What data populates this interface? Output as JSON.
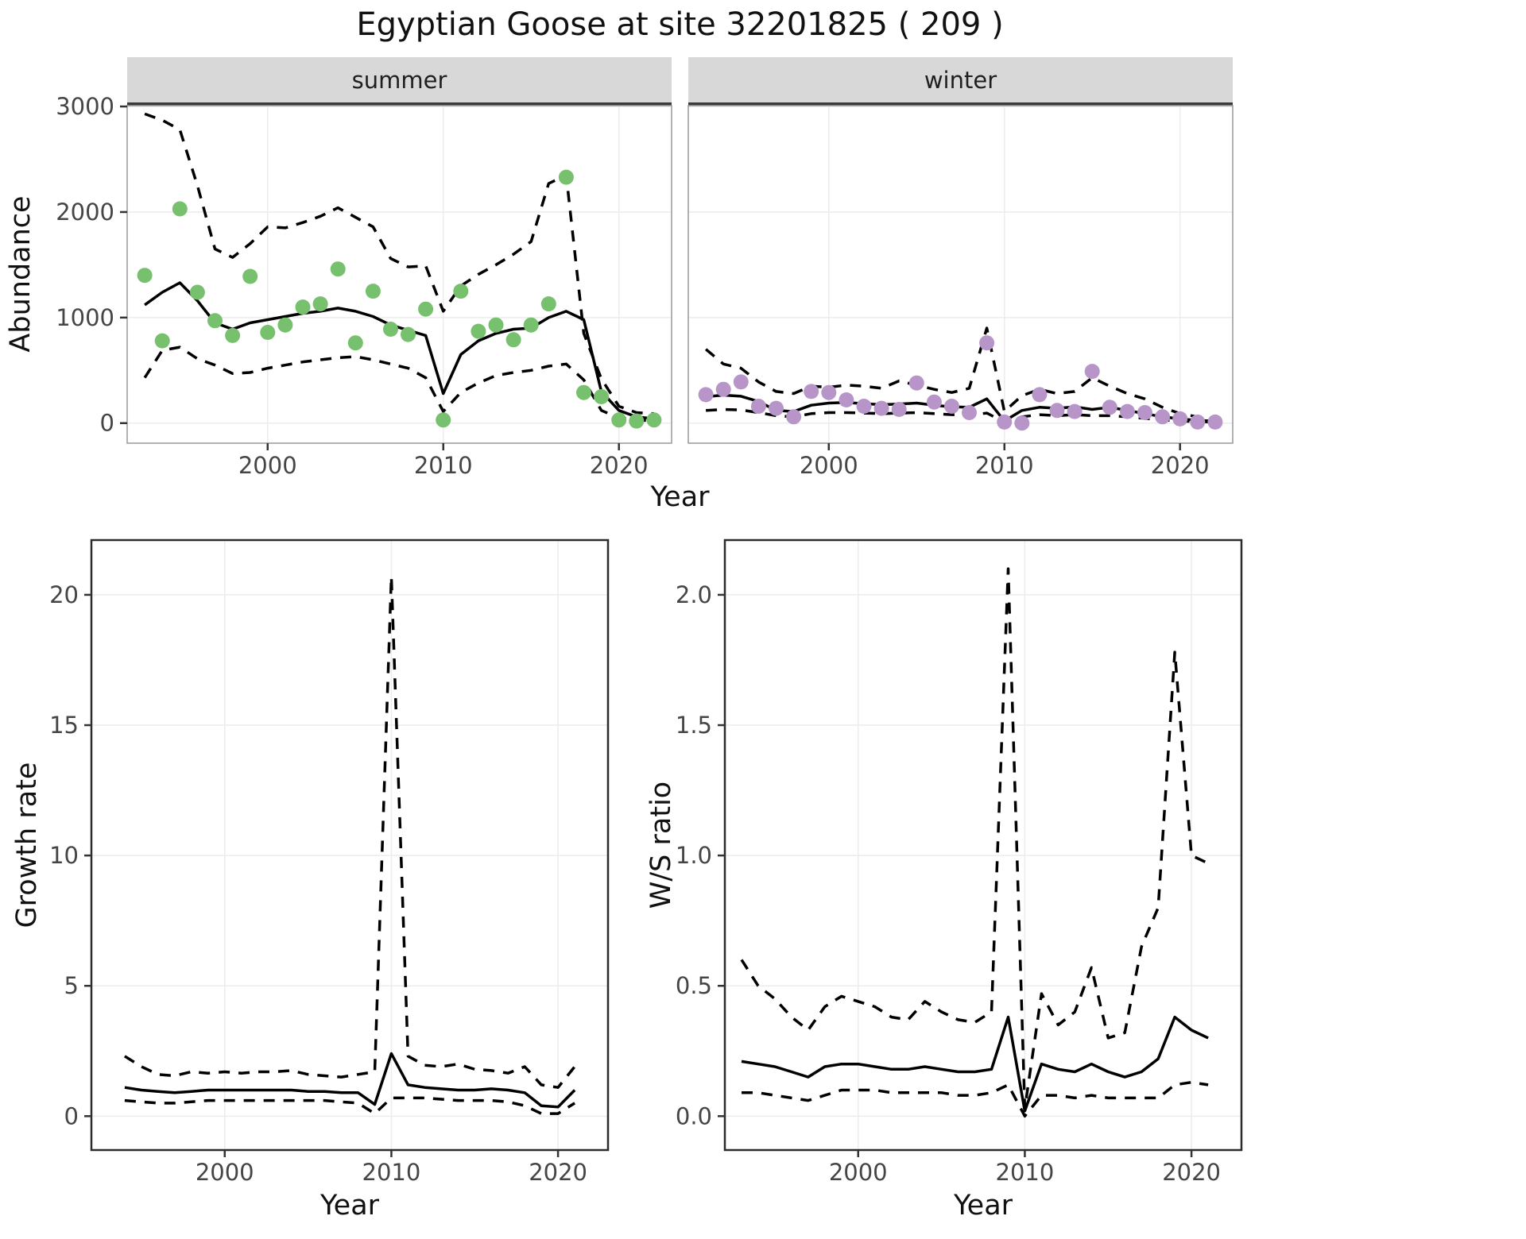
{
  "title": "Egyptian Goose at site 32201825 ( 209 )",
  "chart_data": [
    {
      "id": "abundance-summer",
      "type": "scatter",
      "facet": "summer",
      "xlabel": "Year",
      "ylabel": "Abundance",
      "xlim": [
        1992,
        2023
      ],
      "ylim": [
        -190,
        3008
      ],
      "xticks": [
        2000,
        2010,
        2020
      ],
      "xtick_labels": [
        "2000",
        "2010",
        "2020"
      ],
      "yticks": [
        0,
        1000,
        2000,
        3000
      ],
      "ytick_labels": [
        "0",
        "1000",
        "2000",
        "3000"
      ],
      "x": [
        1993,
        1994,
        1995,
        1996,
        1997,
        1998,
        1999,
        2000,
        2001,
        2002,
        2003,
        2004,
        2005,
        2006,
        2007,
        2008,
        2009,
        2010,
        2011,
        2012,
        2013,
        2014,
        2015,
        2016,
        2017,
        2018,
        2019,
        2020,
        2021,
        2022
      ],
      "series": [
        {
          "name": "observed counts",
          "style": "points",
          "color": "#77c06e",
          "values": [
            1400,
            780,
            2030,
            1240,
            970,
            830,
            1390,
            860,
            930,
            1100,
            1130,
            1460,
            760,
            1250,
            890,
            840,
            1080,
            30,
            1250,
            870,
            930,
            790,
            930,
            1130,
            2330,
            290,
            250,
            30,
            20,
            30
          ]
        },
        {
          "name": "model fit",
          "style": "solid",
          "color": "#000000",
          "values": [
            1120,
            1240,
            1330,
            1160,
            950,
            890,
            950,
            980,
            1010,
            1040,
            1060,
            1090,
            1060,
            1010,
            930,
            880,
            830,
            280,
            650,
            780,
            850,
            890,
            900,
            1000,
            1060,
            980,
            300,
            120,
            60,
            40
          ]
        },
        {
          "name": "upper CI",
          "style": "dashed",
          "color": "#000000",
          "values": [
            2930,
            2870,
            2780,
            2250,
            1650,
            1570,
            1700,
            1860,
            1850,
            1900,
            1960,
            2040,
            1950,
            1860,
            1560,
            1480,
            1490,
            1060,
            1300,
            1410,
            1500,
            1600,
            1720,
            2270,
            2350,
            850,
            420,
            160,
            100,
            90
          ]
        },
        {
          "name": "lower CI",
          "style": "dashed",
          "color": "#000000",
          "values": [
            430,
            690,
            720,
            610,
            550,
            470,
            480,
            520,
            550,
            580,
            600,
            620,
            630,
            600,
            560,
            520,
            430,
            110,
            290,
            380,
            450,
            480,
            500,
            540,
            560,
            410,
            120,
            50,
            30,
            20
          ]
        }
      ]
    },
    {
      "id": "abundance-winter",
      "type": "scatter",
      "facet": "winter",
      "xlabel": "Year",
      "ylabel": "Abundance",
      "xlim": [
        1992,
        2023
      ],
      "ylim": [
        -190,
        3008
      ],
      "xticks": [
        2000,
        2010,
        2020
      ],
      "xtick_labels": [
        "2000",
        "2010",
        "2020"
      ],
      "yticks": [
        0,
        1000,
        2000,
        3000
      ],
      "ytick_labels": [
        "0",
        "1000",
        "2000",
        "3000"
      ],
      "x": [
        1993,
        1994,
        1995,
        1996,
        1997,
        1998,
        1999,
        2000,
        2001,
        2002,
        2003,
        2004,
        2005,
        2006,
        2007,
        2008,
        2009,
        2010,
        2011,
        2012,
        2013,
        2014,
        2015,
        2016,
        2017,
        2018,
        2019,
        2020,
        2021,
        2022
      ],
      "series": [
        {
          "name": "observed counts",
          "style": "points",
          "color": "#b795c8",
          "values": [
            270,
            320,
            390,
            160,
            140,
            60,
            300,
            290,
            220,
            160,
            140,
            130,
            380,
            200,
            160,
            100,
            760,
            10,
            0,
            270,
            120,
            110,
            490,
            150,
            110,
            100,
            60,
            40,
            10,
            10
          ]
        },
        {
          "name": "model fit",
          "style": "solid",
          "color": "#000000",
          "values": [
            250,
            265,
            255,
            205,
            120,
            110,
            170,
            190,
            195,
            185,
            175,
            180,
            190,
            170,
            155,
            150,
            230,
            20,
            120,
            150,
            140,
            155,
            130,
            150,
            120,
            90,
            60,
            40,
            25,
            20
          ]
        },
        {
          "name": "upper CI",
          "style": "dashed",
          "color": "#000000",
          "values": [
            700,
            560,
            520,
            390,
            300,
            280,
            350,
            340,
            360,
            350,
            330,
            400,
            360,
            320,
            290,
            330,
            900,
            110,
            260,
            320,
            280,
            300,
            430,
            350,
            280,
            230,
            150,
            90,
            60,
            50
          ]
        },
        {
          "name": "lower CI",
          "style": "dashed",
          "color": "#000000",
          "values": [
            120,
            130,
            125,
            100,
            70,
            60,
            90,
            100,
            100,
            95,
            90,
            95,
            100,
            90,
            80,
            75,
            95,
            10,
            60,
            80,
            70,
            80,
            70,
            70,
            60,
            45,
            30,
            20,
            15,
            10
          ]
        }
      ]
    },
    {
      "id": "growth-rate",
      "type": "line",
      "xlabel": "Year",
      "ylabel": "Growth rate",
      "xlim": [
        1992,
        2023
      ],
      "ylim": [
        -1.3,
        22.1
      ],
      "xticks": [
        2000,
        2010,
        2020
      ],
      "xtick_labels": [
        "2000",
        "2010",
        "2020"
      ],
      "yticks": [
        0,
        5,
        10,
        15,
        20
      ],
      "ytick_labels": [
        "0",
        "5",
        "10",
        "15",
        "20"
      ],
      "x": [
        1994,
        1995,
        1996,
        1997,
        1998,
        1999,
        2000,
        2001,
        2002,
        2003,
        2004,
        2005,
        2006,
        2007,
        2008,
        2009,
        2010,
        2011,
        2012,
        2013,
        2014,
        2015,
        2016,
        2017,
        2018,
        2019,
        2020,
        2021
      ],
      "series": [
        {
          "name": "growth rate",
          "style": "solid",
          "color": "#000000",
          "values": [
            1.1,
            1.0,
            0.95,
            0.9,
            0.95,
            1.0,
            1.0,
            1.0,
            1.0,
            1.0,
            1.0,
            0.95,
            0.95,
            0.9,
            0.9,
            0.45,
            2.4,
            1.2,
            1.1,
            1.05,
            1.0,
            1.0,
            1.05,
            1.0,
            0.9,
            0.4,
            0.35,
            1.0
          ]
        },
        {
          "name": "upper CI",
          "style": "dashed",
          "color": "#000000",
          "values": [
            2.3,
            1.9,
            1.6,
            1.55,
            1.7,
            1.65,
            1.7,
            1.65,
            1.7,
            1.7,
            1.75,
            1.6,
            1.55,
            1.5,
            1.6,
            1.7,
            20.7,
            2.3,
            1.95,
            1.9,
            2.0,
            1.8,
            1.75,
            1.65,
            1.9,
            1.2,
            1.1,
            1.9
          ]
        },
        {
          "name": "lower CI",
          "style": "dashed",
          "color": "#000000",
          "values": [
            0.6,
            0.55,
            0.5,
            0.5,
            0.55,
            0.6,
            0.6,
            0.6,
            0.6,
            0.6,
            0.6,
            0.6,
            0.6,
            0.55,
            0.5,
            0.1,
            0.7,
            0.7,
            0.7,
            0.65,
            0.6,
            0.6,
            0.6,
            0.55,
            0.4,
            0.1,
            0.1,
            0.5
          ]
        }
      ]
    },
    {
      "id": "ws-ratio",
      "type": "line",
      "xlabel": "Year",
      "ylabel": "W/S ratio",
      "xlim": [
        1992,
        2023
      ],
      "ylim": [
        -0.13,
        2.21
      ],
      "xticks": [
        2000,
        2010,
        2020
      ],
      "xtick_labels": [
        "2000",
        "2010",
        "2020"
      ],
      "yticks": [
        0,
        0.5,
        1,
        1.5,
        2
      ],
      "ytick_labels": [
        "0.0",
        "0.5",
        "1.0",
        "1.5",
        "2.0"
      ],
      "x": [
        1993,
        1994,
        1995,
        1996,
        1997,
        1998,
        1999,
        2000,
        2001,
        2002,
        2003,
        2004,
        2005,
        2006,
        2007,
        2008,
        2009,
        2010,
        2011,
        2012,
        2013,
        2014,
        2015,
        2016,
        2017,
        2018,
        2019,
        2020,
        2021
      ],
      "series": [
        {
          "name": "W/S ratio",
          "style": "solid",
          "color": "#000000",
          "values": [
            0.21,
            0.2,
            0.19,
            0.17,
            0.15,
            0.19,
            0.2,
            0.2,
            0.19,
            0.18,
            0.18,
            0.19,
            0.18,
            0.17,
            0.17,
            0.18,
            0.38,
            0.02,
            0.2,
            0.18,
            0.17,
            0.2,
            0.17,
            0.15,
            0.17,
            0.22,
            0.38,
            0.33,
            0.3
          ]
        },
        {
          "name": "upper CI",
          "style": "dashed",
          "color": "#000000",
          "values": [
            0.6,
            0.5,
            0.45,
            0.38,
            0.33,
            0.42,
            0.46,
            0.44,
            0.42,
            0.38,
            0.37,
            0.44,
            0.4,
            0.37,
            0.36,
            0.4,
            2.1,
            0.03,
            0.47,
            0.35,
            0.4,
            0.57,
            0.3,
            0.32,
            0.65,
            0.8,
            1.78,
            1.0,
            0.97
          ]
        },
        {
          "name": "lower CI",
          "style": "dashed",
          "color": "#000000",
          "values": [
            0.09,
            0.09,
            0.08,
            0.07,
            0.06,
            0.08,
            0.1,
            0.1,
            0.1,
            0.09,
            0.09,
            0.09,
            0.09,
            0.08,
            0.08,
            0.09,
            0.12,
            0.0,
            0.08,
            0.08,
            0.07,
            0.08,
            0.07,
            0.07,
            0.07,
            0.07,
            0.12,
            0.13,
            0.12
          ]
        }
      ]
    }
  ]
}
